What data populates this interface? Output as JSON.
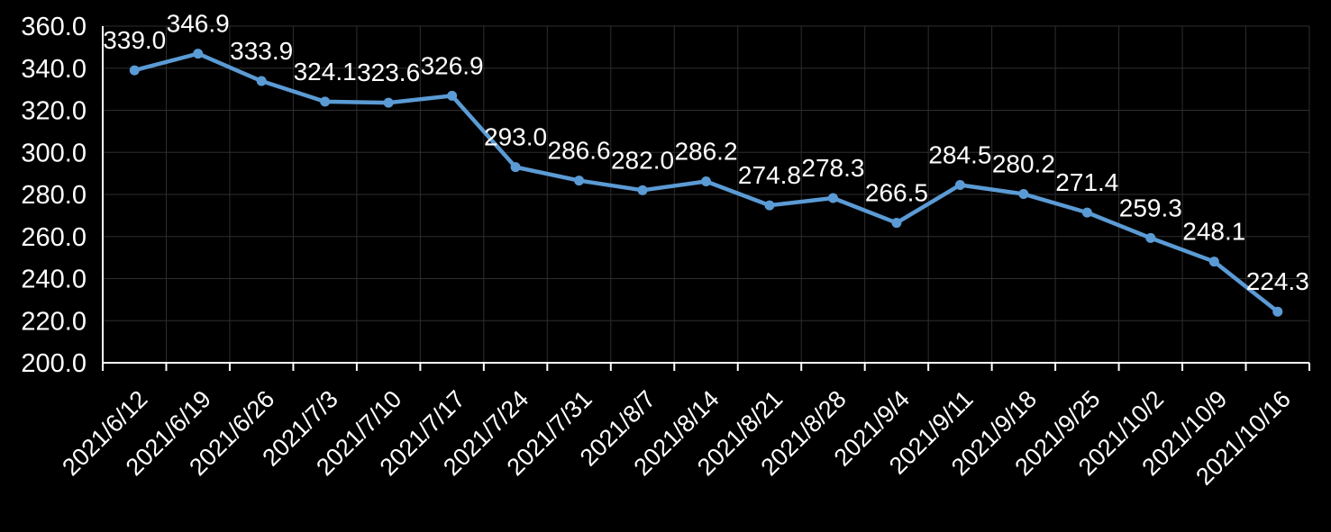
{
  "chart_data": {
    "type": "line",
    "title": "",
    "xlabel": "",
    "ylabel": "",
    "categories": [
      "2021/6/12",
      "2021/6/19",
      "2021/6/26",
      "2021/7/3",
      "2021/7/10",
      "2021/7/17",
      "2021/7/24",
      "2021/7/31",
      "2021/8/7",
      "2021/8/14",
      "2021/8/21",
      "2021/8/28",
      "2021/9/4",
      "2021/9/11",
      "2021/9/18",
      "2021/9/25",
      "2021/10/2",
      "2021/10/9",
      "2021/10/16"
    ],
    "series": [
      {
        "name": "value",
        "values": [
          339.0,
          346.9,
          333.9,
          324.1,
          323.6,
          326.9,
          293.0,
          286.6,
          282.0,
          286.2,
          274.8,
          278.3,
          266.5,
          284.5,
          280.2,
          271.4,
          259.3,
          248.1,
          224.3
        ]
      }
    ],
    "data_labels_visible": true,
    "data_label_format": "0.1f",
    "ylim": [
      200,
      360
    ],
    "y_ticks": [
      200,
      220,
      240,
      260,
      280,
      300,
      320,
      340,
      360
    ],
    "y_tick_format": "0.1f",
    "grid": true,
    "legend_position": "none"
  },
  "style": {
    "background_color": "#000000",
    "line_color": "#5B9BD5",
    "marker_color": "#5B9BD5",
    "gridline_color": "#2E2E2E",
    "axis_color": "#FFFFFF",
    "label_color": "#FFFFFF"
  }
}
